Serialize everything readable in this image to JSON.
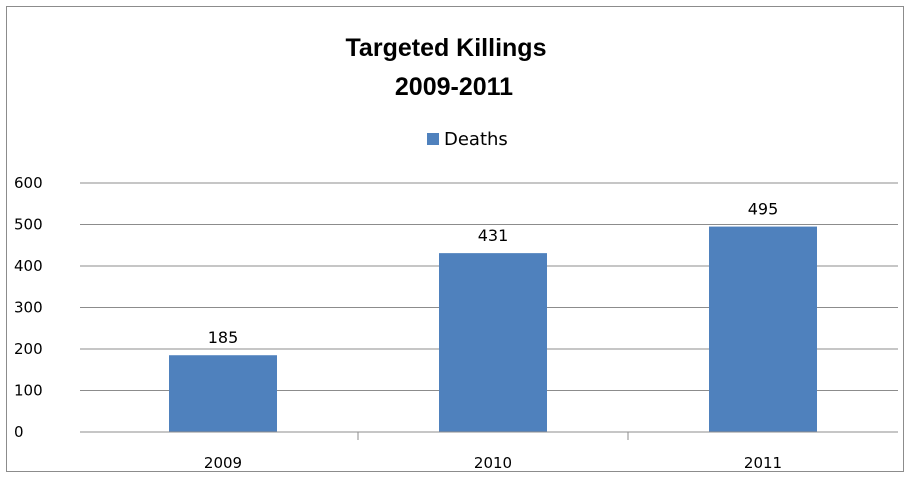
{
  "chart_data": {
    "type": "bar",
    "title": [
      "Targeted Killings",
      "2009-2011"
    ],
    "categories": [
      "2009",
      "2010",
      "2011"
    ],
    "series": [
      {
        "name": "Deaths",
        "values": [
          185,
          431,
          495
        ]
      }
    ],
    "data_labels": [
      "185",
      "431",
      "495"
    ],
    "ylim": [
      0,
      600
    ],
    "yticks": [
      "0",
      "100",
      "200",
      "300",
      "400",
      "500",
      "600"
    ],
    "grid": true,
    "legend_position": "top",
    "bar_color": "#4f81bd"
  }
}
